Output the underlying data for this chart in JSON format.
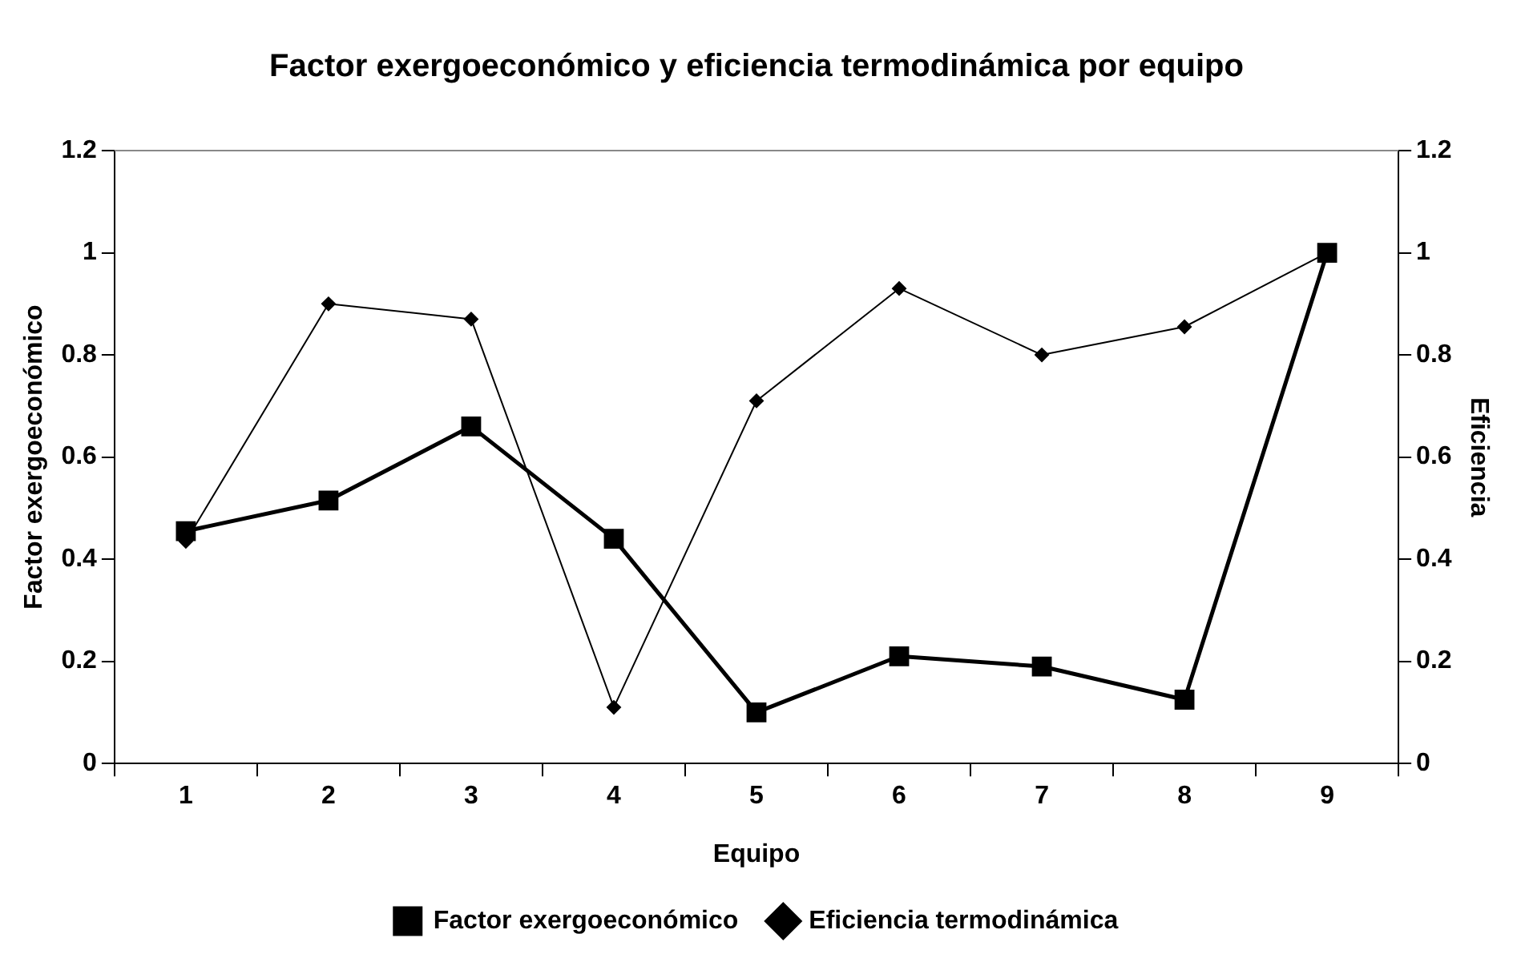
{
  "chart_data": {
    "type": "line",
    "title": "Factor exergoeconómico y eficiencia termodinámica por equipo",
    "xlabel": "Equipo",
    "ylabel": "Factor exergoeconómico",
    "y2label": "Eficiencia",
    "categories": [
      "1",
      "2",
      "3",
      "4",
      "5",
      "6",
      "7",
      "8",
      "9"
    ],
    "series": [
      {
        "name": "Factor exergoeconómico",
        "color": "#000000",
        "marker": "square",
        "values": [
          0.455,
          0.515,
          0.66,
          0.44,
          0.1,
          0.21,
          0.19,
          0.125,
          1.0
        ]
      },
      {
        "name": "Eficiencia termodinámica",
        "color": "#000000",
        "marker": "diamond",
        "axis": "y2",
        "values": [
          0.435,
          0.9,
          0.87,
          0.11,
          0.71,
          0.93,
          0.8,
          0.855,
          1.0
        ]
      }
    ],
    "ylim": [
      0,
      1.2
    ],
    "yticks": [
      0,
      0.2,
      0.4,
      0.6,
      0.8,
      1,
      1.2
    ],
    "y2lim": [
      0,
      1.2
    ],
    "y2ticks": [
      0,
      0.2,
      0.4,
      0.6,
      0.8,
      1,
      1.2
    ],
    "grid": false,
    "legend": "bottom",
    "line_style": "solid"
  }
}
